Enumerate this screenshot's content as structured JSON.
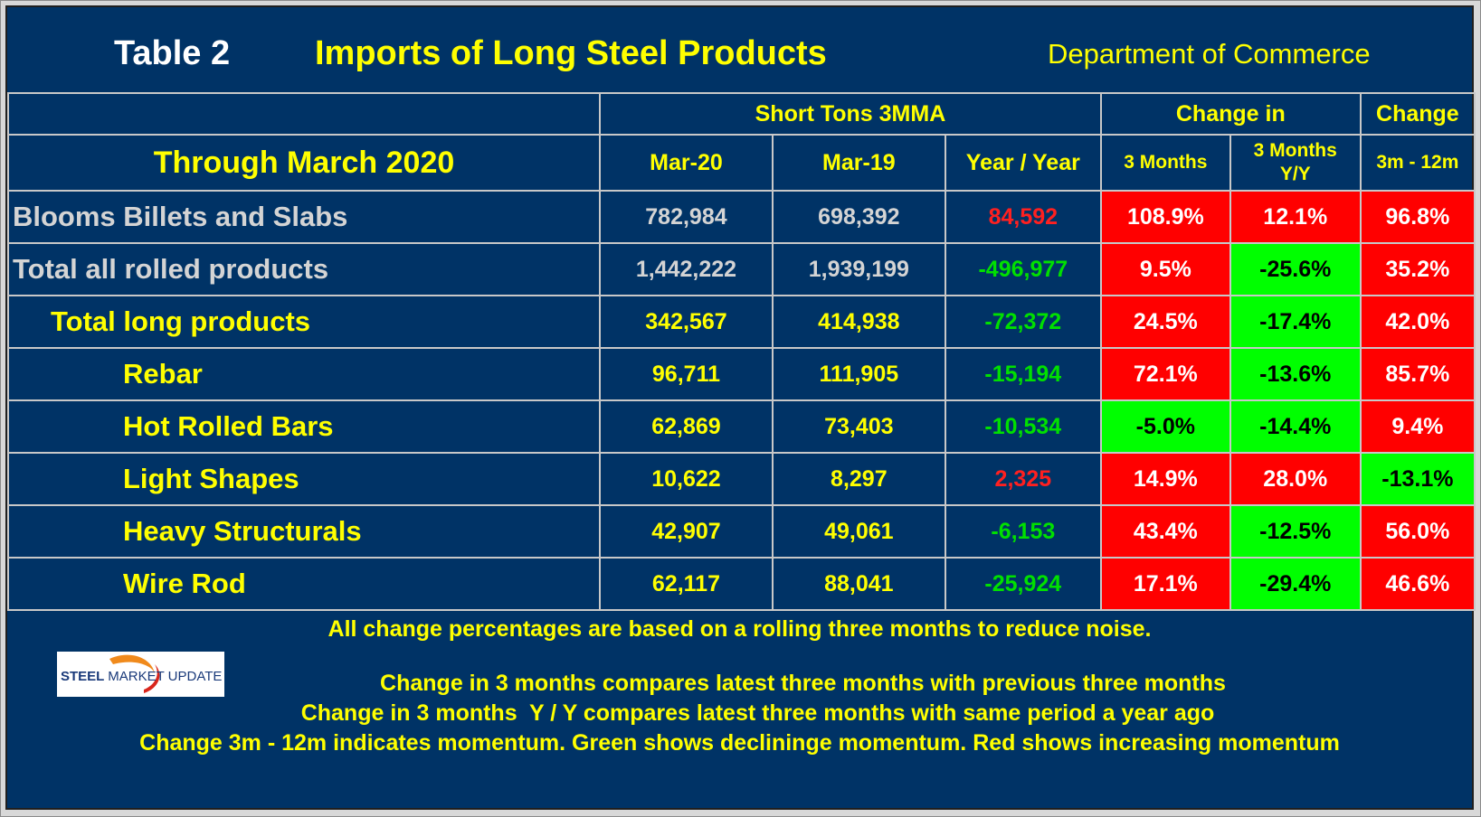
{
  "header": {
    "table_label": "Table 2",
    "title": "Imports of Long Steel Products",
    "source": "Department of Commerce"
  },
  "columns": {
    "group_short_tons": "Short Tons 3MMA",
    "group_change_in": "Change in",
    "group_change": "Change",
    "period_label": "Through March 2020",
    "mar20": "Mar-20",
    "mar19": "Mar-19",
    "yoy": "Year / Year",
    "three_months": "3 Months",
    "three_months_yy_line1": "3 Months",
    "three_months_yy_line2": "Y/Y",
    "three_m_twelve_m": "3m - 12m"
  },
  "rows": [
    {
      "label": "Blooms Billets and Slabs",
      "mar20": "782,984",
      "mar19": "698,392",
      "yoy": "84,592",
      "chg_3m": "108.9%",
      "chg_3m_yy": "12.1%",
      "chg_3m_12m": "96.8%"
    },
    {
      "label": "Total all rolled products",
      "mar20": "1,442,222",
      "mar19": "1,939,199",
      "yoy": "-496,977",
      "chg_3m": "9.5%",
      "chg_3m_yy": "-25.6%",
      "chg_3m_12m": "35.2%"
    },
    {
      "label": "Total long products",
      "mar20": "342,567",
      "mar19": "414,938",
      "yoy": "-72,372",
      "chg_3m": "24.5%",
      "chg_3m_yy": "-17.4%",
      "chg_3m_12m": "42.0%"
    },
    {
      "label": "Rebar",
      "mar20": "96,711",
      "mar19": "111,905",
      "yoy": "-15,194",
      "chg_3m": "72.1%",
      "chg_3m_yy": "-13.6%",
      "chg_3m_12m": "85.7%"
    },
    {
      "label": "Hot Rolled Bars",
      "mar20": "62,869",
      "mar19": "73,403",
      "yoy": "-10,534",
      "chg_3m": "-5.0%",
      "chg_3m_yy": "-14.4%",
      "chg_3m_12m": "9.4%"
    },
    {
      "label": "Light Shapes",
      "mar20": "10,622",
      "mar19": "8,297",
      "yoy": "2,325",
      "chg_3m": "14.9%",
      "chg_3m_yy": "28.0%",
      "chg_3m_12m": "-13.1%"
    },
    {
      "label": "Heavy Structurals",
      "mar20": "42,907",
      "mar19": "49,061",
      "yoy": "-6,153",
      "chg_3m": "43.4%",
      "chg_3m_yy": "-12.5%",
      "chg_3m_12m": "56.0%"
    },
    {
      "label": "Wire Rod",
      "mar20": "62,117",
      "mar19": "88,041",
      "yoy": "-25,924",
      "chg_3m": "17.1%",
      "chg_3m_yy": "-29.4%",
      "chg_3m_12m": "46.6%"
    }
  ],
  "footer": {
    "note_main": "All change percentages are based on a rolling three months to reduce noise.",
    "note_3m": "Change in 3 months compares latest three months with previous three months",
    "note_3m_yy": "Change in 3 months  Y / Y compares latest three months with same period a year ago",
    "note_3m_12m": "Change 3m - 12m indicates momentum. Green shows declininge momentum. Red shows increasing momentum"
  },
  "logo": {
    "word1": "STEEL",
    "word2": "MARKET UPDATE"
  },
  "colors": {
    "background": "#003366",
    "title_yellow": "#ffff00",
    "cell_red": "#ff0000",
    "cell_green": "#00ff00",
    "value_red": "#ff2020",
    "value_green": "#00e000"
  }
}
